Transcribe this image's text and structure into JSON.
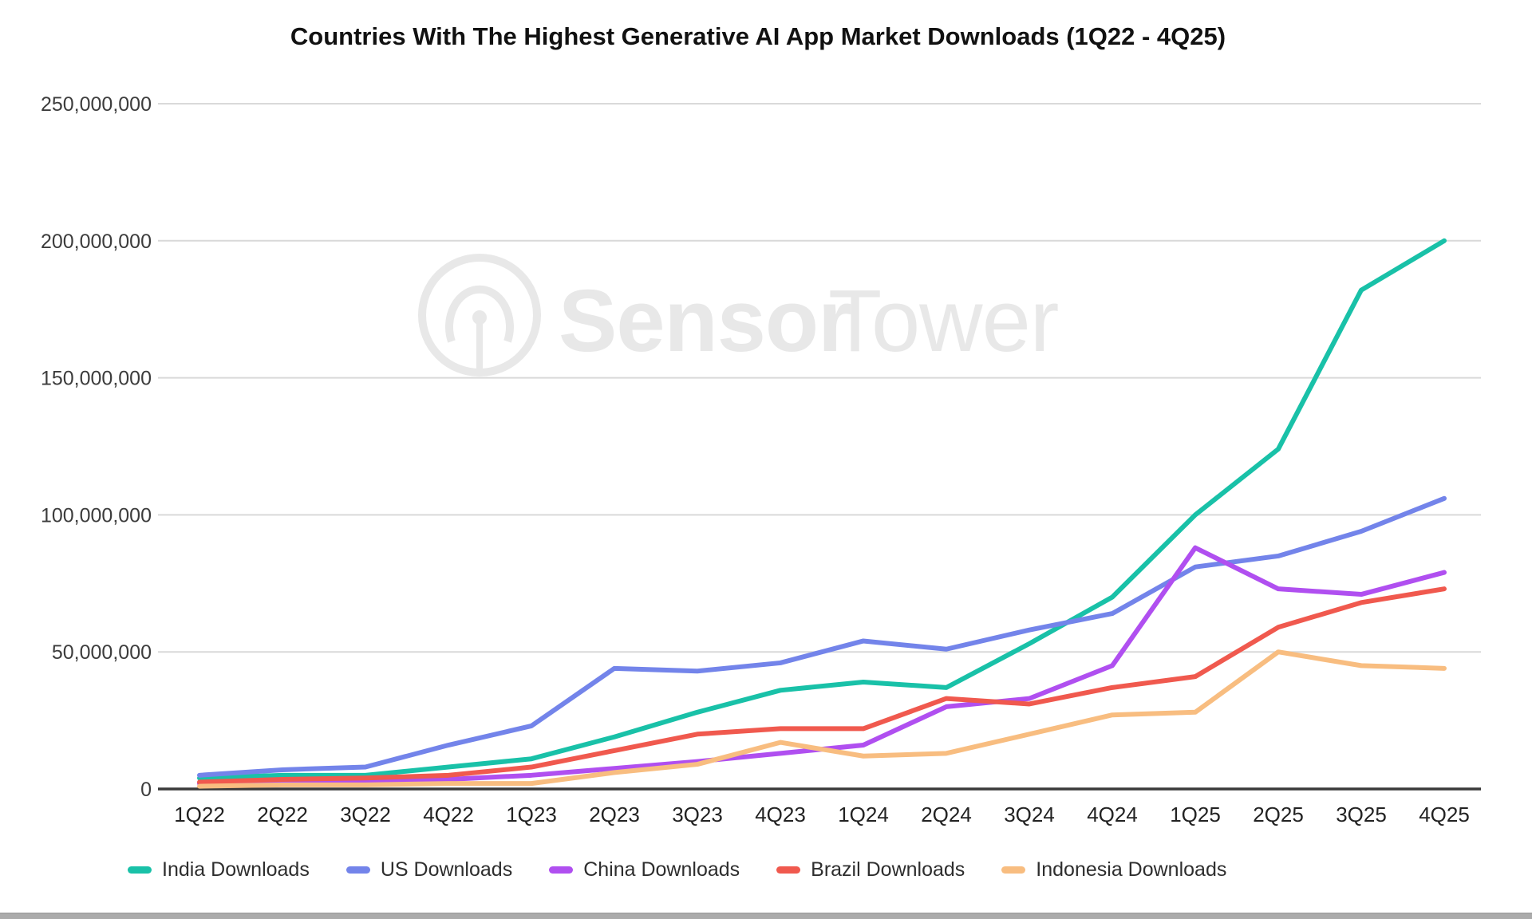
{
  "title": "Countries With The Highest Generative AI App Market Downloads (1Q22 - 4Q25)",
  "watermark": {
    "bold_text": "Sensor",
    "light_text": "Tower",
    "color": "#e8e8e8"
  },
  "axis_colors": {
    "gridline": "#d9d9d9",
    "axis_line": "#3a3a3a",
    "tick_label": "#3c3c3c"
  },
  "chart_data": {
    "type": "line",
    "title": "Countries With The Highest Generative AI App Market Downloads (1Q22 - 4Q25)",
    "categories": [
      "1Q22",
      "2Q22",
      "3Q22",
      "4Q22",
      "1Q23",
      "2Q23",
      "3Q23",
      "4Q23",
      "1Q24",
      "2Q24",
      "3Q24",
      "4Q24",
      "1Q25",
      "2Q25",
      "3Q25",
      "4Q25"
    ],
    "y_axis": {
      "min": 0,
      "max": 250000000,
      "step": 50000000,
      "format": "comma"
    },
    "grid": true,
    "legend_position": "bottom",
    "series": [
      {
        "name": "India Downloads",
        "color": "#19c1a8",
        "values": [
          4000000,
          5000000,
          5000000,
          8000000,
          11000000,
          19000000,
          28000000,
          36000000,
          39000000,
          37000000,
          53000000,
          70000000,
          100000000,
          124000000,
          182000000,
          200000000
        ]
      },
      {
        "name": "US Downloads",
        "color": "#7384ea",
        "values": [
          5000000,
          7000000,
          8000000,
          16000000,
          23000000,
          44000000,
          43000000,
          46000000,
          54000000,
          51000000,
          58000000,
          64000000,
          81000000,
          85000000,
          94000000,
          106000000
        ]
      },
      {
        "name": "China Downloads",
        "color": "#b04ff0",
        "values": [
          2000000,
          2500000,
          3000000,
          3500000,
          5000000,
          7500000,
          10000000,
          13000000,
          16000000,
          30000000,
          33000000,
          45000000,
          88000000,
          73000000,
          71000000,
          79000000
        ]
      },
      {
        "name": "Brazil Downloads",
        "color": "#f0594e",
        "values": [
          2500000,
          3500000,
          4000000,
          5000000,
          8000000,
          14000000,
          20000000,
          22000000,
          22000000,
          33000000,
          31000000,
          37000000,
          41000000,
          59000000,
          68000000,
          73000000
        ]
      },
      {
        "name": "Indonesia Downloads",
        "color": "#f8bd80",
        "values": [
          1000000,
          1500000,
          1500000,
          2000000,
          2000000,
          6000000,
          9000000,
          17000000,
          12000000,
          13000000,
          20000000,
          27000000,
          28000000,
          50000000,
          45000000,
          44000000
        ]
      }
    ]
  }
}
